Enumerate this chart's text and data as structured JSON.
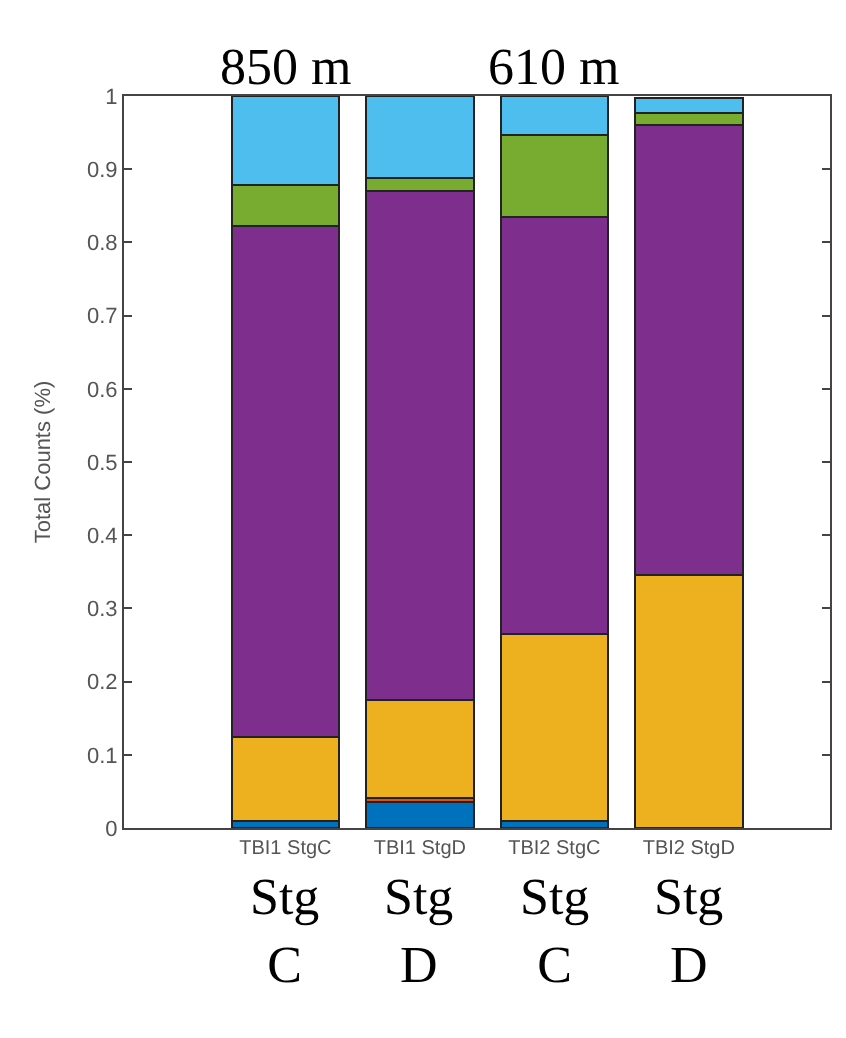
{
  "chart_data": {
    "type": "bar",
    "stacked": true,
    "ylabel": "Total Counts (%)",
    "categories": [
      "TBI1 StgC",
      "TBI1 StgD",
      "TBI2 StgC",
      "TBI2 StgD"
    ],
    "series": [
      {
        "color": "#0072bd",
        "values": [
          0.01,
          0.035,
          0.01,
          null
        ]
      },
      {
        "color": "#d95319",
        "values": [
          0,
          0.006,
          0,
          0
        ]
      },
      {
        "color": "#edb120",
        "values": [
          0.115,
          0.134,
          0.255,
          0.345
        ]
      },
      {
        "color": "#7e2f8e",
        "values": [
          0.698,
          0.695,
          0.57,
          0.615
        ]
      },
      {
        "color": "#77ac30",
        "values": [
          0.055,
          0.018,
          0.112,
          0.017
        ]
      },
      {
        "color": "#4dbeee",
        "values": [
          0.122,
          0.112,
          0.053,
          0.02
        ]
      }
    ],
    "ylim": [
      0,
      1
    ],
    "yticks": [
      0,
      0.1,
      0.2,
      0.3,
      0.4,
      0.5,
      0.6,
      0.7,
      0.8,
      0.9,
      1
    ],
    "legend": false,
    "annotations": [
      "850 m",
      "610 m",
      "Stg C",
      "Stg D",
      "Stg C",
      "Stg D"
    ]
  }
}
